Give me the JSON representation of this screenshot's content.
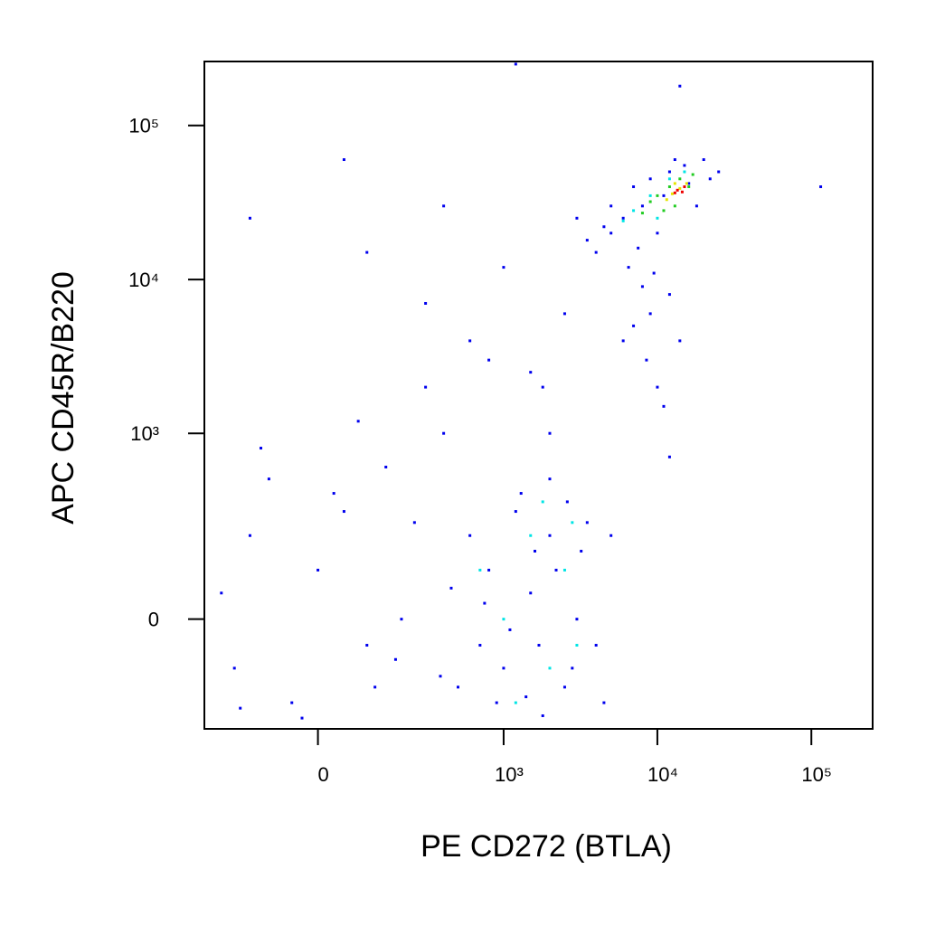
{
  "chart_data": {
    "type": "scatter",
    "scale": "asinh",
    "x_label": "PE CD272 (BTLA)",
    "y_label": "APC CD45R/B220",
    "xlim": [
      -330,
      250000
    ],
    "ylim": [
      -310,
      260000
    ],
    "xticks": [
      0,
      {
        "value": 1000,
        "label": "10³"
      },
      {
        "value": 10000,
        "label": "10⁴"
      },
      {
        "value": 100000,
        "label": "10⁵"
      }
    ],
    "yticks": [
      0,
      {
        "value": 1000,
        "label": "10³"
      },
      {
        "value": 10000,
        "label": "10⁴"
      },
      {
        "value": 100000,
        "label": "10⁵"
      }
    ],
    "series": [
      {
        "color": "#0000ee",
        "x": [
          8000,
          6000,
          5000,
          4000,
          3500,
          7000,
          9000,
          12000,
          15000,
          20000,
          22000,
          18000,
          25000,
          10000,
          6500,
          8000,
          9000,
          7000,
          8500,
          10000,
          11000,
          6000,
          12000,
          5000,
          4500,
          3000,
          11000,
          16000,
          13000,
          7500,
          9500,
          14000,
          12000,
          115000,
          1200,
          14000,
          800,
          1000,
          1500,
          2000,
          2500,
          3000,
          1200,
          700,
          900,
          1800,
          2200,
          3500,
          4000,
          600,
          500,
          1100,
          1600,
          2800,
          1400,
          2600,
          3200,
          750,
          1300,
          2000,
          1700,
          4500,
          5000,
          450,
          380,
          -200,
          -150,
          -100,
          -50,
          0,
          50,
          100,
          150,
          200,
          -250,
          -120,
          80,
          -30,
          120,
          30,
          -180,
          250,
          180,
          400,
          300,
          800,
          1500,
          2000,
          600,
          100,
          -150,
          50,
          2500,
          1000,
          400,
          300,
          1800
        ],
        "y": [
          30000,
          25000,
          20000,
          15000,
          18000,
          40000,
          45000,
          50000,
          55000,
          60000,
          45000,
          30000,
          50000,
          20000,
          12000,
          9000,
          6000,
          5000,
          3000,
          2000,
          1500,
          4000,
          8000,
          30000,
          22000,
          25000,
          35000,
          42000,
          60000,
          16000,
          11000,
          4000,
          700,
          40000,
          250000,
          180000,
          100,
          -100,
          50,
          200,
          -150,
          0,
          300,
          -50,
          -200,
          -250,
          100,
          250,
          -50,
          200,
          -150,
          -20,
          150,
          -100,
          -180,
          350,
          150,
          30,
          400,
          500,
          -50,
          -200,
          200,
          60,
          -120,
          -100,
          200,
          500,
          -200,
          100,
          300,
          -50,
          600,
          0,
          50,
          800,
          1200,
          -260,
          -150,
          400,
          -220,
          250,
          -80,
          1000,
          2000,
          3000,
          2500,
          1000,
          4000,
          15000,
          25000,
          60000,
          6000,
          12000,
          30000,
          7000,
          2000
        ]
      },
      {
        "color": "#00e5e5",
        "x": [
          1000,
          1500,
          2000,
          2500,
          3000,
          1200,
          1800,
          2800,
          700,
          9000,
          7000,
          12000,
          15000,
          6000,
          10000
        ],
        "y": [
          0,
          200,
          -100,
          100,
          -50,
          -200,
          350,
          250,
          100,
          35000,
          28000,
          45000,
          50000,
          24000,
          25000
        ]
      },
      {
        "color": "#22cc22",
        "x": [
          10000,
          12000,
          14000,
          9000,
          13000,
          16000,
          11000,
          8000,
          17000
        ],
        "y": [
          35000,
          40000,
          45000,
          32000,
          30000,
          40000,
          28000,
          27000,
          48000
        ]
      },
      {
        "color": "#e5e500",
        "x": [
          12500,
          14000,
          15500,
          13000,
          11500
        ],
        "y": [
          36000,
          39000,
          42000,
          42000,
          33000
        ]
      },
      {
        "color": "#ee0000",
        "x": [
          13500,
          14500,
          13000,
          15000
        ],
        "y": [
          38000,
          37000,
          36500,
          40000
        ]
      }
    ]
  }
}
